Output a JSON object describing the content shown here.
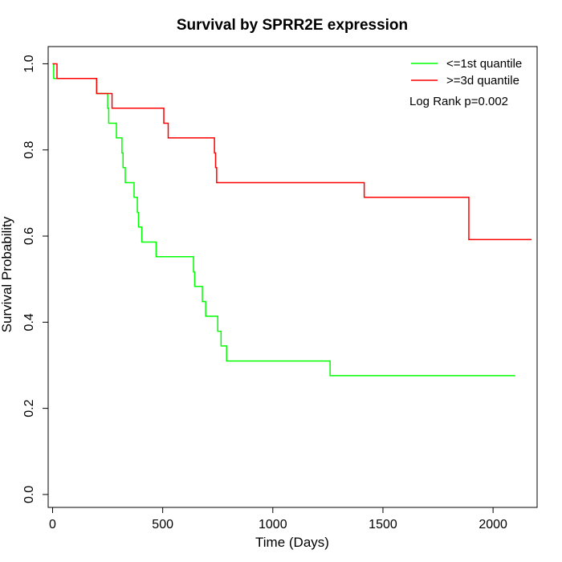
{
  "chart_data": {
    "type": "line",
    "title": "Survival by SPRR2E expression",
    "xlabel": "Time (Days)",
    "ylabel": "Survival Probability",
    "xlim": [
      -20,
      2200
    ],
    "ylim": [
      -0.03,
      1.04
    ],
    "x_ticks": [
      0,
      500,
      1000,
      1500,
      2000
    ],
    "x_tick_labels": [
      "0",
      "500",
      "1000",
      "1500",
      "2000"
    ],
    "y_ticks": [
      0.0,
      0.2,
      0.4,
      0.6,
      0.8,
      1.0
    ],
    "y_tick_labels": [
      "0.0",
      "0.2",
      "0.4",
      "0.6",
      "0.8",
      "1.0"
    ],
    "grid": false,
    "legend_position": "top-right",
    "annotation": "Log Rank p=0.002",
    "series": [
      {
        "name": "<=1st quantile",
        "color": "#00ff00",
        "step": true,
        "points": [
          [
            0,
            1.0
          ],
          [
            5,
            0.966
          ],
          [
            200,
            0.931
          ],
          [
            250,
            0.897
          ],
          [
            255,
            0.862
          ],
          [
            290,
            0.828
          ],
          [
            315,
            0.793
          ],
          [
            320,
            0.759
          ],
          [
            330,
            0.724
          ],
          [
            370,
            0.69
          ],
          [
            385,
            0.655
          ],
          [
            390,
            0.621
          ],
          [
            405,
            0.586
          ],
          [
            470,
            0.552
          ],
          [
            640,
            0.517
          ],
          [
            645,
            0.483
          ],
          [
            680,
            0.448
          ],
          [
            695,
            0.414
          ],
          [
            750,
            0.379
          ],
          [
            765,
            0.345
          ],
          [
            790,
            0.31
          ],
          [
            1260,
            0.276
          ],
          [
            2100,
            0.276
          ]
        ]
      },
      {
        "name": ">=3d quantile",
        "color": "#ff0000",
        "step": true,
        "points": [
          [
            0,
            1.0
          ],
          [
            20,
            0.966
          ],
          [
            200,
            0.931
          ],
          [
            270,
            0.897
          ],
          [
            505,
            0.862
          ],
          [
            525,
            0.828
          ],
          [
            735,
            0.793
          ],
          [
            740,
            0.759
          ],
          [
            745,
            0.724
          ],
          [
            1415,
            0.69
          ],
          [
            1890,
            0.592
          ],
          [
            2175,
            0.592
          ]
        ]
      }
    ]
  }
}
